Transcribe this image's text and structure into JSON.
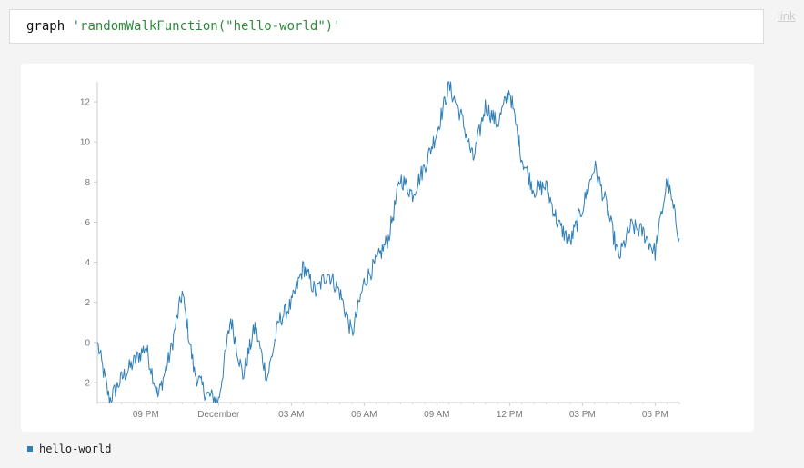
{
  "query": {
    "keyword": "graph",
    "argument": "'randomWalkFunction(\"hello-world\")'"
  },
  "link_label": "link",
  "colors": {
    "series": "#2f7fb8",
    "axis": "#cccccc",
    "tick_text": "#777777"
  },
  "chart_data": {
    "type": "line",
    "title": "",
    "xlabel": "",
    "ylabel": "",
    "ylim": [
      -3,
      13
    ],
    "y_ticks": [
      "-2",
      "0",
      "2",
      "4",
      "6",
      "8",
      "10",
      "12"
    ],
    "x_ticks": [
      "09 PM",
      "December",
      "03 AM",
      "06 AM",
      "09 AM",
      "12 PM",
      "03 PM",
      "06 PM"
    ],
    "x": [
      "19:00",
      "19:30",
      "20:00",
      "20:30",
      "21:00",
      "21:30",
      "22:00",
      "22:30",
      "23:00",
      "23:30",
      "00:00",
      "00:30",
      "01:00",
      "01:30",
      "02:00",
      "02:30",
      "03:00",
      "03:30",
      "04:00",
      "04:30",
      "05:00",
      "05:30",
      "06:00",
      "06:30",
      "07:00",
      "07:30",
      "08:00",
      "08:30",
      "09:00",
      "09:30",
      "10:00",
      "10:30",
      "11:00",
      "11:30",
      "12:00",
      "12:30",
      "13:00",
      "13:30",
      "14:00",
      "14:30",
      "15:00",
      "15:30",
      "16:00",
      "16:30",
      "17:00",
      "17:30",
      "18:00",
      "18:30",
      "19:00"
    ],
    "series": [
      {
        "name": "hello-world",
        "values": [
          0.0,
          -2.9,
          -1.8,
          -1.0,
          -0.2,
          -2.7,
          -0.6,
          2.5,
          -1.5,
          -2.6,
          -2.9,
          1.2,
          -1.7,
          0.8,
          -1.8,
          1.1,
          1.9,
          3.8,
          2.5,
          3.5,
          2.5,
          0.4,
          3.0,
          4.0,
          5.2,
          8.2,
          7.4,
          8.8,
          10.5,
          12.8,
          11.3,
          9.1,
          11.8,
          10.9,
          12.6,
          9.2,
          7.6,
          7.8,
          5.9,
          5.0,
          6.7,
          8.8,
          6.8,
          4.2,
          5.8,
          5.5,
          4.5,
          8.1,
          5.2
        ]
      }
    ],
    "legend": "bottom-left",
    "grid": false
  }
}
